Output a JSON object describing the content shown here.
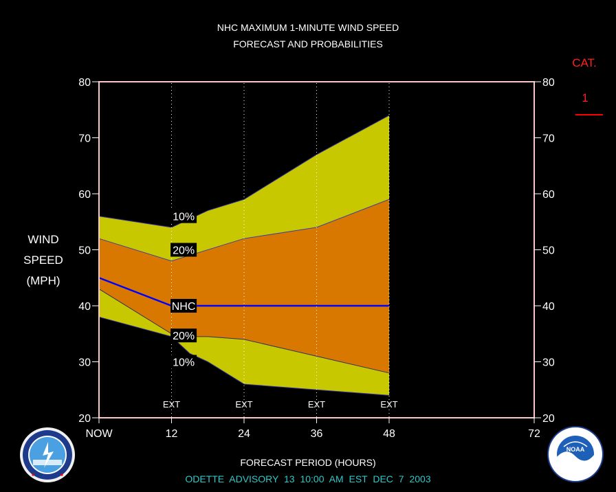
{
  "header": {
    "title_line1": "NHC MAXIMUM 1-MINUTE WIND SPEED",
    "title_line2": "FORECAST AND PROBABILITIES"
  },
  "y_axis_label": [
    "WIND",
    "SPEED",
    "(MPH)"
  ],
  "x_axis_label": "FORECAST PERIOD (HOURS)",
  "footer": "ODETTE   ADVISORY  13 10:00 AM EST DEC 7 2003",
  "category": {
    "label": "CAT.",
    "value": "1",
    "color": "#ff0000"
  },
  "colors": {
    "outer_band": "#c8c800",
    "inner_band": "#d87800",
    "nhc_line": "#0000ff",
    "footer_text": "#30c8c8",
    "frame": "#ffc8c8"
  },
  "chart_data": {
    "type": "area",
    "x": [
      0,
      12,
      24,
      36,
      48
    ],
    "xlim": [
      0,
      72
    ],
    "ylim": [
      20,
      80
    ],
    "x_tick_labels": [
      "NOW",
      "12",
      "24",
      "36",
      "48",
      "72"
    ],
    "x_ticks": [
      0,
      12,
      24,
      36,
      48,
      72
    ],
    "y_ticks": [
      20,
      30,
      40,
      50,
      60,
      70,
      80
    ],
    "ext_label": "EXT",
    "ext_x": [
      12,
      24,
      36,
      48
    ],
    "series": [
      {
        "name": "10%",
        "role": "upper",
        "x": [
          0,
          12,
          15,
          18,
          24,
          36,
          48
        ],
        "values": [
          56,
          54,
          55.5,
          57,
          59,
          67,
          74
        ]
      },
      {
        "name": "20%",
        "role": "upper",
        "x": [
          0,
          12,
          24,
          36,
          48
        ],
        "values": [
          52,
          48,
          52,
          54,
          59
        ]
      },
      {
        "name": "NHC",
        "x": [
          0,
          12,
          24,
          36,
          48
        ],
        "values": [
          45,
          40,
          40,
          40,
          40
        ]
      },
      {
        "name": "20%",
        "role": "lower",
        "x": [
          0,
          12,
          15,
          18,
          24,
          36,
          48
        ],
        "values": [
          43,
          35,
          34.5,
          34.5,
          34,
          31,
          28
        ]
      },
      {
        "name": "10%",
        "role": "lower",
        "x": [
          0,
          12,
          15,
          18,
          24,
          36,
          48
        ],
        "values": [
          38,
          34.5,
          31.5,
          30,
          26,
          25,
          24
        ]
      }
    ],
    "band_labels": [
      {
        "text": "10%",
        "x": 14,
        "y": 56
      },
      {
        "text": "20%",
        "x": 14,
        "y": 50
      },
      {
        "text": "NHC",
        "x": 14,
        "y": 40
      },
      {
        "text": "20%",
        "x": 14,
        "y": 34.7
      },
      {
        "text": "10%",
        "x": 14,
        "y": 30
      }
    ],
    "grid": false
  }
}
